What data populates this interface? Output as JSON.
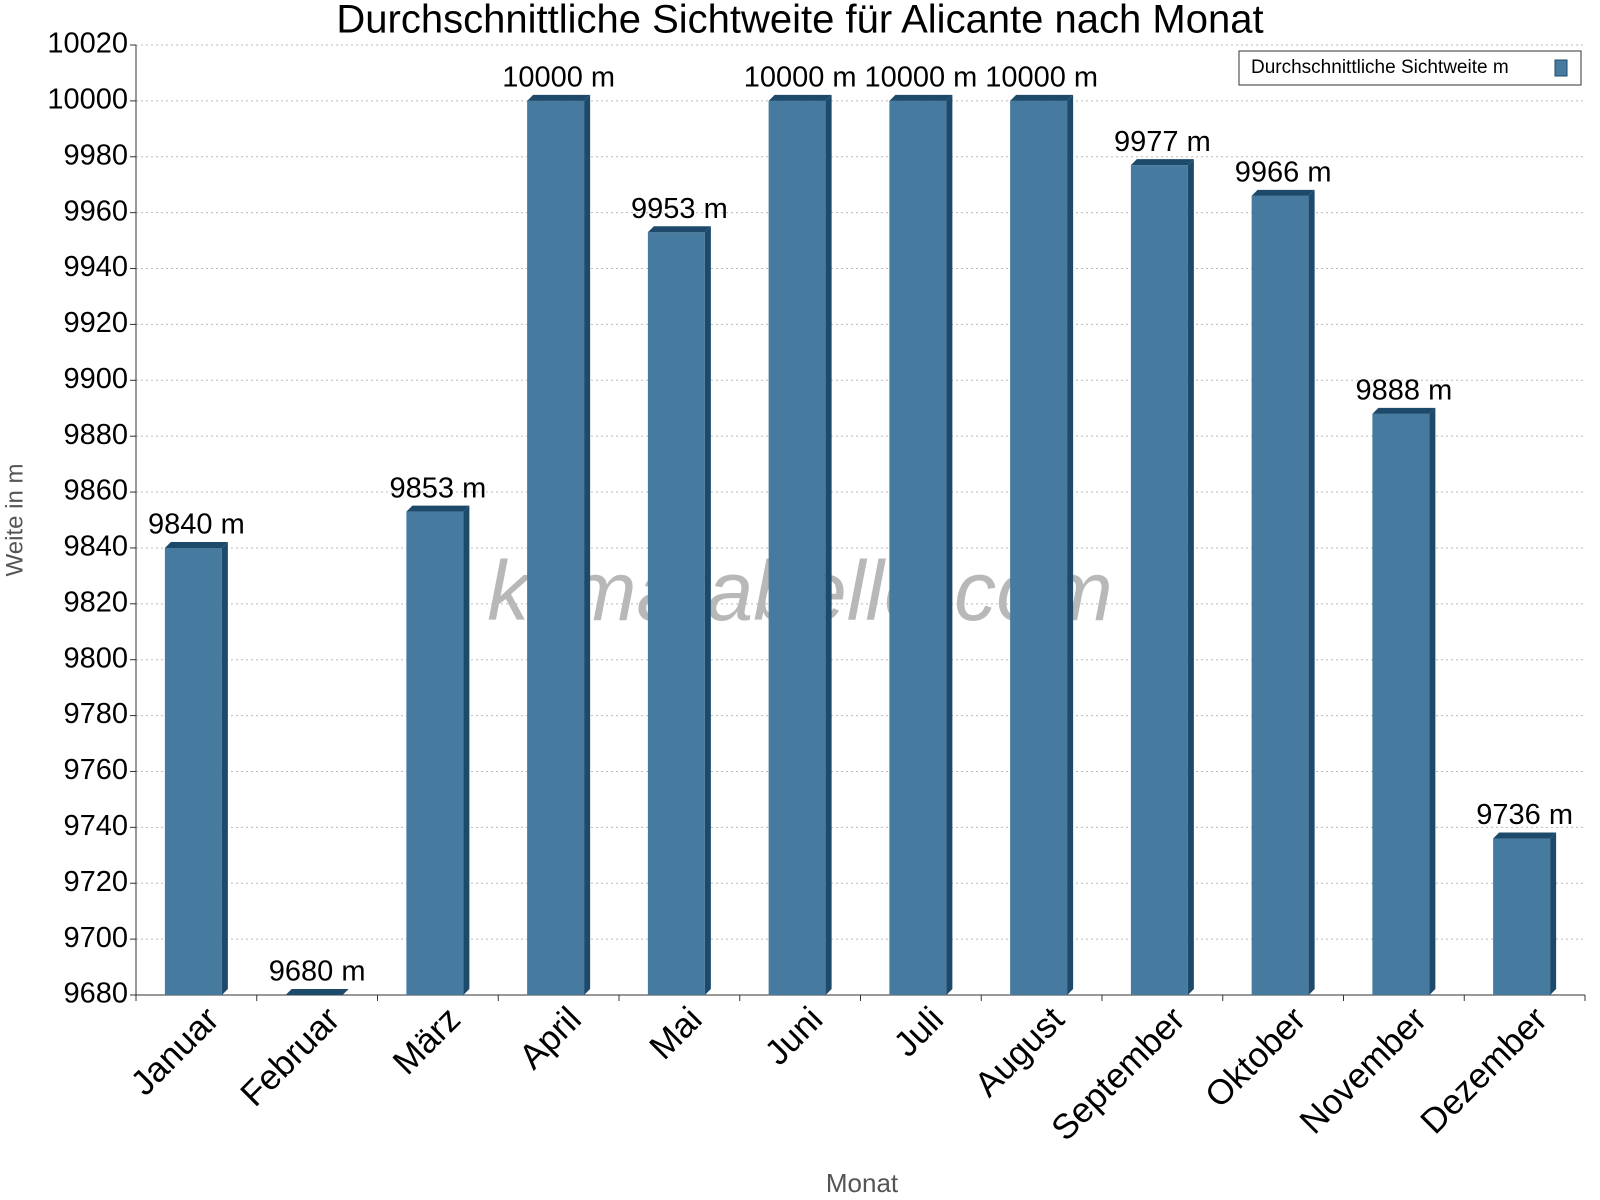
{
  "chart_data": {
    "type": "bar",
    "title": "Durchschnittliche Sichtweite für Alicante nach Monat",
    "x_label": "Monat",
    "y_label": "Weite in m",
    "watermark": "klimatabelle.com",
    "categories": [
      "Januar",
      "Februar",
      "März",
      "April",
      "Mai",
      "Juni",
      "Juli",
      "August",
      "September",
      "Oktober",
      "November",
      "Dezember"
    ],
    "series": [
      {
        "name": "Durchschnittliche Sichtweite m",
        "color": "#467a9e",
        "values": [
          9840,
          9680,
          9853,
          10000,
          9953,
          10000,
          10000,
          10000,
          9977,
          9966,
          9888,
          9736
        ],
        "value_labels": [
          "9840 m",
          "9680 m",
          "9853 m",
          "10000 m",
          "9953 m",
          "10000 m",
          "10000 m",
          "10000 m",
          "9977 m",
          "9966 m",
          "9888 m",
          "9736 m"
        ]
      }
    ],
    "ylim": [
      9680,
      10020
    ],
    "yticks": [
      9680,
      9700,
      9720,
      9740,
      9760,
      9780,
      9800,
      9820,
      9840,
      9860,
      9880,
      9900,
      9920,
      9940,
      9960,
      9980,
      10000,
      10020
    ],
    "grid": true,
    "legend": "top-right"
  }
}
